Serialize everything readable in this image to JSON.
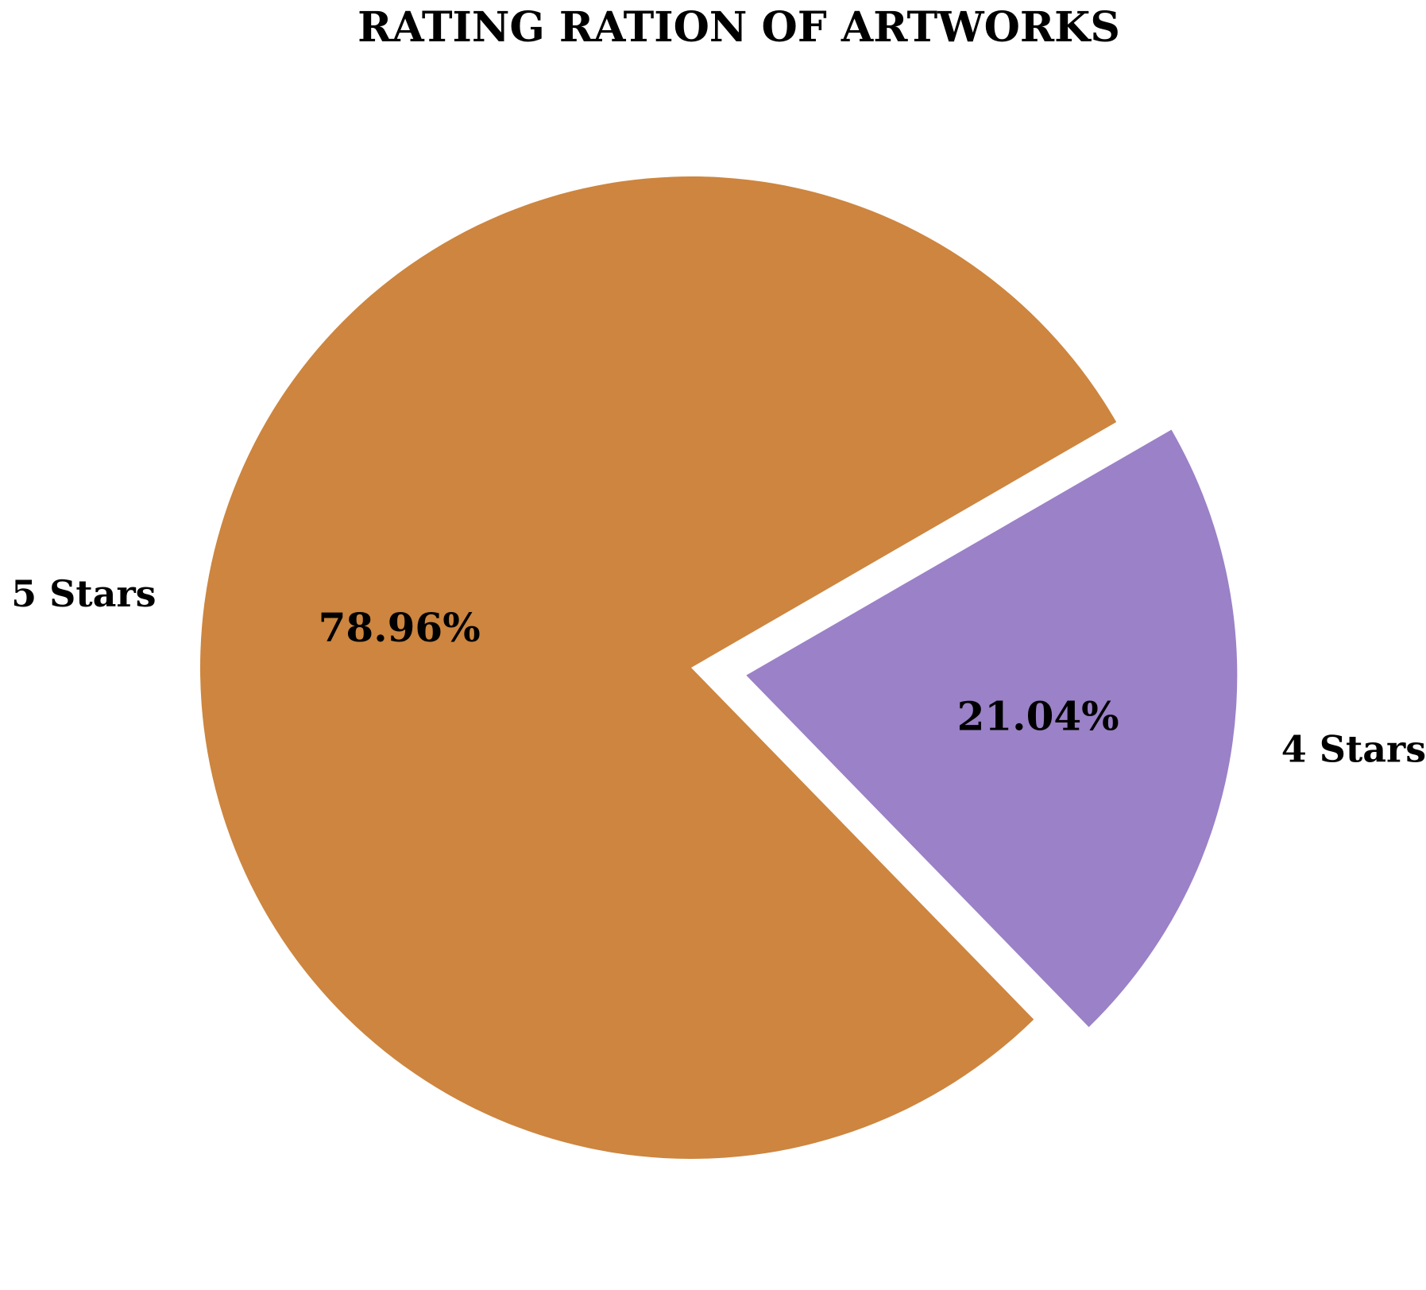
{
  "chart_data": {
    "type": "pie",
    "title": "RATING RATION OF ARTWORKS",
    "slices": [
      {
        "label": "5 Stars",
        "value": 78.96,
        "value_label": "78.96%",
        "color": "#CD853F",
        "exploded": false
      },
      {
        "label": "4 Stars",
        "value": 21.04,
        "value_label": "21.04%",
        "color": "#9B81C7",
        "exploded": true
      }
    ],
    "legend": "none"
  }
}
